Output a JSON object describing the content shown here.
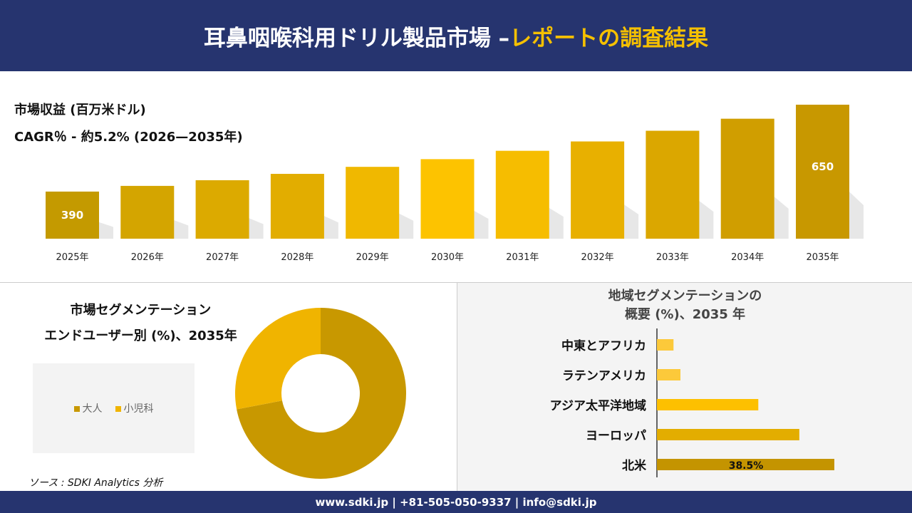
{
  "header": {
    "title_main": "耳鼻咽喉科用ドリル製品市場 –",
    "title_accent": "レポートの調査結果"
  },
  "revenue": {
    "title": "市場収益 (百万米ドル)",
    "cagr": "CAGR％ - 約5.2% (2026—2035年)"
  },
  "chart_data": [
    {
      "type": "bar",
      "categories": [
        "2025年",
        "2026年",
        "2027年",
        "2028年",
        "2029年",
        "2030年",
        "2031年",
        "2032年",
        "2033年",
        "2034年",
        "2035年"
      ],
      "values": [
        390,
        407,
        424,
        443,
        464,
        487,
        512,
        540,
        572,
        608,
        650
      ],
      "data_labels": {
        "0": "390",
        "10": "650"
      },
      "colors": [
        "#c49a00",
        "#d4a500",
        "#dcaa00",
        "#e2ad00",
        "#f0b800",
        "#fdc300",
        "#f6bd00",
        "#e8b000",
        "#dba700",
        "#d09e00",
        "#c89800"
      ]
    },
    {
      "type": "pie",
      "categories": [
        "大人",
        "小児科"
      ],
      "values": [
        72,
        28
      ],
      "colors": [
        "#c89800",
        "#f0b400"
      ],
      "donut": true,
      "legend": "left"
    },
    {
      "type": "bar",
      "orientation": "horizontal",
      "categories": [
        "中東とアフリカ",
        "ラテンアメリカ",
        "アジア太平洋地域",
        "ヨーロッパ",
        "北米"
      ],
      "values": [
        3.6,
        5.1,
        22.0,
        30.9,
        38.5
      ],
      "data_labels": {
        "4": "38.5%"
      },
      "colors": [
        "#fcc93a",
        "#fcc93a",
        "#fdc000",
        "#e3ad00",
        "#c49400"
      ]
    }
  ],
  "segment": {
    "title1": "市場セグメンテーション",
    "title2": "エンドユーザー別 (%)、2035年"
  },
  "region": {
    "title1": "地域セグメンテーションの",
    "title2": "概要 (%)、2035 年"
  },
  "source": "ソース : SDKI Analytics 分析",
  "footer": "www.sdki.jp | +81-505-050-9337 | info@sdki.jp"
}
